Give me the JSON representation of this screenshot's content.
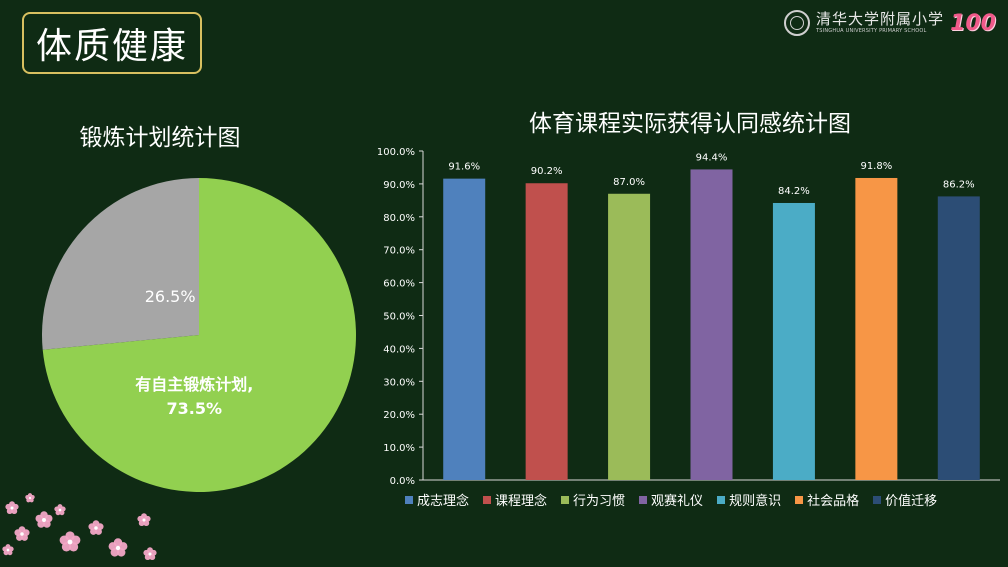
{
  "header": {
    "title": "体质健康",
    "school_name_cn": "清华大学附属小学",
    "school_name_en": "TSINGHUA UNIVERSITY PRIMARY SCHOOL",
    "anniversary": "100"
  },
  "chart_data": [
    {
      "type": "pie",
      "title": "锻炼计划统计图",
      "slices": [
        {
          "label": "有自主锻炼计划,",
          "value": 73.5,
          "display": "73.5%",
          "color": "#92d050"
        },
        {
          "label": "",
          "value": 26.5,
          "display": "26.5%",
          "color": "#a6a6a6"
        }
      ]
    },
    {
      "type": "bar",
      "title": "体育课程实际获得认同感统计图",
      "categories": [
        "成志理念",
        "课程理念",
        "行为习惯",
        "观赛礼仪",
        "规则意识",
        "社会品格",
        "价值迁移"
      ],
      "values": [
        91.6,
        90.2,
        87.0,
        94.4,
        84.2,
        91.8,
        86.2
      ],
      "value_labels": [
        "91.6%",
        "90.2%",
        "87.0%",
        "94.4%",
        "84.2%",
        "91.8%",
        "86.2%"
      ],
      "colors": [
        "#4f81bd",
        "#c0504d",
        "#9bbb59",
        "#8064a2",
        "#4bacc6",
        "#f79646",
        "#2c4d75"
      ],
      "ylim": [
        0,
        100
      ],
      "yticks": [
        "0.0%",
        "10.0%",
        "20.0%",
        "30.0%",
        "40.0%",
        "50.0%",
        "60.0%",
        "70.0%",
        "80.0%",
        "90.0%",
        "100.0%"
      ],
      "legend": "bottom",
      "grid": false
    }
  ]
}
